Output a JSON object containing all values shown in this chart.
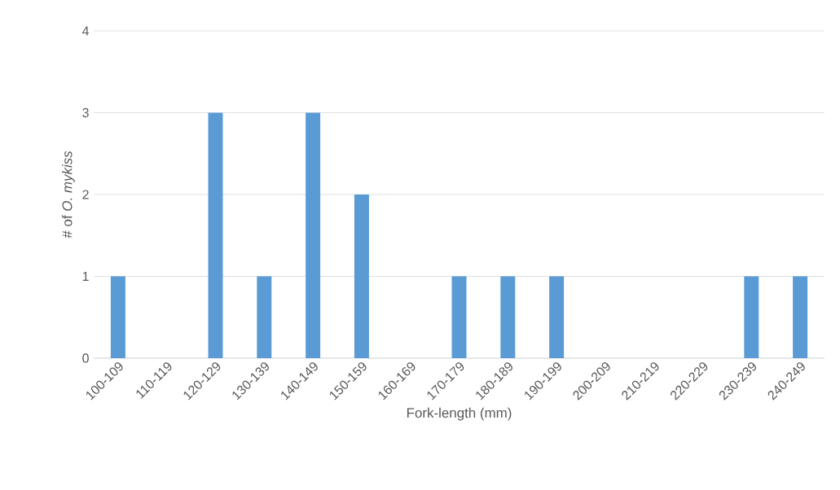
{
  "chart_data": {
    "type": "bar",
    "xlabel": "Fork-length (mm)",
    "ylabel": "# of *O. mykiss*",
    "categories": [
      "100-109",
      "110-119",
      "120-129",
      "130-139",
      "140-149",
      "150-159",
      "160-169",
      "170-179",
      "180-189",
      "190-199",
      "200-209",
      "210-219",
      "220-229",
      "230-239",
      "240-249"
    ],
    "values": [
      1,
      0,
      3,
      1,
      3,
      2,
      0,
      1,
      1,
      1,
      0,
      0,
      0,
      1,
      1
    ],
    "color": "#5b9bd5",
    "ylim": [
      0,
      4
    ],
    "yticks": [
      0,
      1,
      2,
      3,
      4
    ],
    "grid": "y"
  }
}
